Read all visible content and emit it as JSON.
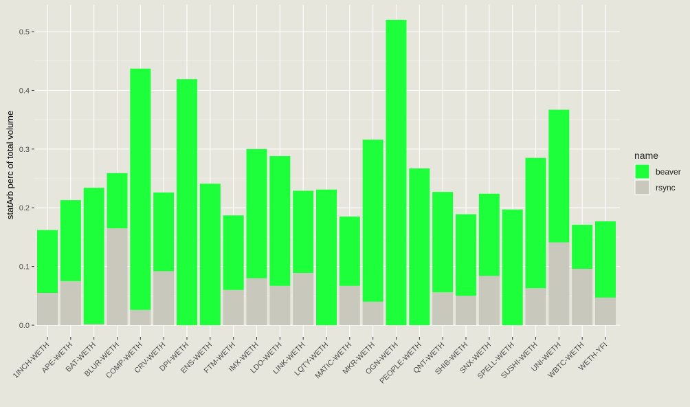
{
  "chart_data": {
    "type": "bar",
    "stacked": true,
    "title": "",
    "xlabel": "",
    "ylabel": "statArb perc of total volume",
    "ylim": [
      0,
      0.53
    ],
    "yticks": [
      "0.0",
      "0.1",
      "0.2",
      "0.3",
      "0.4",
      "0.5"
    ],
    "grid": true,
    "legend": {
      "title": "name",
      "position": "right"
    },
    "categories": [
      "1INCH-WETH",
      "APE-WETH",
      "BAT-WETH",
      "BLUR-WETH",
      "COMP-WETH",
      "CRV-WETH",
      "DPI-WETH",
      "ENS-WETH",
      "FTM-WETH",
      "IMX-WETH",
      "LDO-WETH",
      "LINK-WETH",
      "LQTY-WETH",
      "MATIC-WETH",
      "MKR-WETH",
      "OGN-WETH",
      "PEOPLE-WETH",
      "QNT-WETH",
      "SHIB-WETH",
      "SNX-WETH",
      "SPELL-WETH",
      "SUSHI-WETH",
      "UNI-WETH",
      "WBTC-WETH",
      "WETH-YFI"
    ],
    "series": [
      {
        "name": "beaver",
        "color": "#1eff3c",
        "values": [
          0.107,
          0.138,
          0.232,
          0.094,
          0.411,
          0.134,
          0.419,
          0.241,
          0.127,
          0.22,
          0.221,
          0.14,
          0.231,
          0.118,
          0.276,
          0.52,
          0.267,
          0.171,
          0.139,
          0.14,
          0.197,
          0.222,
          0.226,
          0.075,
          0.13
        ]
      },
      {
        "name": "rsync",
        "color": "#c8c8bc",
        "values": [
          0.055,
          0.075,
          0.002,
          0.165,
          0.026,
          0.092,
          0.0,
          0.0,
          0.06,
          0.08,
          0.067,
          0.089,
          0.0,
          0.067,
          0.04,
          0.0,
          0.0,
          0.056,
          0.05,
          0.084,
          0.0,
          0.063,
          0.141,
          0.096,
          0.047
        ]
      }
    ]
  }
}
